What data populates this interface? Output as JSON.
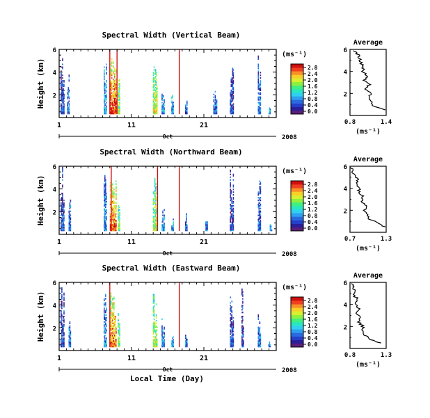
{
  "x_axis": {
    "tick_labels": [
      "1",
      "11",
      "21"
    ],
    "month_label": "Oct",
    "year_label": "2008",
    "title": "Local Time (Day)"
  },
  "y_label": "Height (km)",
  "y_tick_labels": [
    "6",
    "4",
    "2"
  ],
  "colorbar": {
    "unit_label": "(ms⁻¹)",
    "colors": [
      "#5a1e78",
      "#2a1e9a",
      "#2440c8",
      "#2a6ae0",
      "#2ea0f0",
      "#30d0f0",
      "#28e8c0",
      "#40f080",
      "#90f040",
      "#d8f030",
      "#f8d028",
      "#f89028",
      "#f04020",
      "#d01010"
    ]
  },
  "panels": [
    {
      "title": "Spectral Width (Vertical Beam)",
      "colorbar_ticks": [
        "2.8",
        "2.4",
        "2.0",
        "1.6",
        "1.2",
        "0.8",
        "0.4",
        "0.0"
      ],
      "average_title": "Average",
      "average_ticks": [
        "0.8",
        "1.4"
      ],
      "average_xlabel": "(ms⁻¹)",
      "average_y_ticks": [
        "6",
        "4",
        "2"
      ]
    },
    {
      "title": "Spectral Width (Northward Beam)",
      "colorbar_ticks": [
        "2.8",
        "2.4",
        "2.0",
        "1.6",
        "1.2",
        "0.8",
        "0.4",
        "0.0"
      ],
      "average_title": "Average",
      "average_ticks": [
        "0.7",
        "1.3"
      ],
      "average_xlabel": "(ms⁻¹)",
      "average_y_ticks": [
        "6",
        "4",
        "2"
      ]
    },
    {
      "title": "Spectral Width (Eastward Beam)",
      "colorbar_ticks": [
        "2.8",
        "2.4",
        "2.0",
        "1.6",
        "1.2",
        "0.8",
        "0.4",
        "0.0"
      ],
      "average_title": "Average",
      "average_ticks": [
        "0.8",
        "1.3"
      ],
      "average_xlabel": "(ms⁻¹)",
      "average_y_ticks": [
        "6",
        "4",
        "2"
      ]
    }
  ],
  "chart_data": [
    {
      "type": "heatmap",
      "title": "Spectral Width (Vertical Beam)",
      "xlabel": "",
      "ylabel": "Height (km)",
      "xlim": [
        1,
        31
      ],
      "ylim": [
        0,
        6
      ],
      "colorbar_range": [
        0.0,
        2.8
      ],
      "colorbar_label": "(ms⁻¹)",
      "events": [
        {
          "day": 1.4,
          "width": 0.5,
          "top": 5.9,
          "v": 0.2
        },
        {
          "day": 2.2,
          "width": 0.3,
          "top": 4.2,
          "v": 0.3
        },
        {
          "day": 7.3,
          "width": 0.4,
          "top": 5.5,
          "v": 0.5
        },
        {
          "day": 8.4,
          "width": 0.9,
          "top": 5.9,
          "v": 1.4
        },
        {
          "day": 9.2,
          "width": 0.3,
          "top": 3.5,
          "v": 0.9
        },
        {
          "day": 14.2,
          "width": 0.6,
          "top": 5.0,
          "v": 1.0
        },
        {
          "day": 15.3,
          "width": 0.4,
          "top": 3.5,
          "v": 0.4
        },
        {
          "day": 16.6,
          "width": 0.3,
          "top": 2.5,
          "v": 0.4
        },
        {
          "day": 18.5,
          "width": 0.3,
          "top": 1.6,
          "v": 0.3
        },
        {
          "day": 22.5,
          "width": 0.5,
          "top": 2.8,
          "v": 0.3
        },
        {
          "day": 24.8,
          "width": 0.5,
          "top": 5.9,
          "v": 0.2
        },
        {
          "day": 28.6,
          "width": 0.4,
          "top": 5.9,
          "v": 0.3
        },
        {
          "day": 30.0,
          "width": 0.3,
          "top": 1.0,
          "v": 0.4
        }
      ],
      "red_lines": [
        8.0,
        9.0,
        17.6
      ],
      "average_profile": {
        "xlim": [
          0.8,
          1.4
        ],
        "height": [
          0.5,
          0.8,
          1.2,
          1.6,
          2.0,
          2.4,
          2.8,
          3.2,
          3.6,
          4.0,
          4.4,
          4.8,
          5.2,
          5.6,
          5.9
        ],
        "value": [
          1.38,
          1.2,
          1.15,
          1.1,
          1.14,
          1.06,
          1.12,
          1.04,
          1.09,
          1.0,
          1.03,
          0.98,
          0.96,
          0.92,
          0.86
        ]
      }
    },
    {
      "type": "heatmap",
      "title": "Spectral Width (Northward Beam)",
      "xlabel": "",
      "ylabel": "Height (km)",
      "xlim": [
        1,
        31
      ],
      "ylim": [
        0,
        6
      ],
      "colorbar_range": [
        0.0,
        2.8
      ],
      "colorbar_label": "(ms⁻¹)",
      "events": [
        {
          "day": 1.4,
          "width": 0.5,
          "top": 5.9,
          "v": 0.2
        },
        {
          "day": 2.4,
          "width": 0.3,
          "top": 3.5,
          "v": 0.3
        },
        {
          "day": 7.3,
          "width": 0.4,
          "top": 5.9,
          "v": 0.4
        },
        {
          "day": 8.4,
          "width": 0.9,
          "top": 5.9,
          "v": 1.3
        },
        {
          "day": 9.2,
          "width": 0.3,
          "top": 3.5,
          "v": 0.8
        },
        {
          "day": 14.2,
          "width": 0.6,
          "top": 5.5,
          "v": 0.9
        },
        {
          "day": 15.3,
          "width": 0.4,
          "top": 3.2,
          "v": 0.4
        },
        {
          "day": 16.6,
          "width": 0.3,
          "top": 1.8,
          "v": 0.4
        },
        {
          "day": 18.5,
          "width": 0.3,
          "top": 2.0,
          "v": 0.3
        },
        {
          "day": 21.3,
          "width": 0.3,
          "top": 1.2,
          "v": 0.3
        },
        {
          "day": 24.8,
          "width": 0.5,
          "top": 5.9,
          "v": 0.2
        },
        {
          "day": 28.6,
          "width": 0.4,
          "top": 5.5,
          "v": 0.3
        },
        {
          "day": 30.2,
          "width": 0.3,
          "top": 1.0,
          "v": 0.4
        }
      ],
      "red_lines": [
        8.2,
        14.6,
        17.6
      ],
      "average_profile": {
        "xlim": [
          0.7,
          1.3
        ],
        "height": [
          0.5,
          0.8,
          1.2,
          1.6,
          2.0,
          2.4,
          2.8,
          3.2,
          3.6,
          4.0,
          4.4,
          4.8,
          5.2,
          5.6,
          5.9
        ],
        "value": [
          1.28,
          1.18,
          1.02,
          0.98,
          0.94,
          0.97,
          0.9,
          0.92,
          0.84,
          0.86,
          0.8,
          0.82,
          0.77,
          0.74,
          0.71
        ]
      }
    },
    {
      "type": "heatmap",
      "title": "Spectral Width (Eastward Beam)",
      "xlabel": "Local Time (Day)",
      "ylabel": "Height (km)",
      "xlim": [
        1,
        31
      ],
      "ylim": [
        0,
        6
      ],
      "colorbar_range": [
        0.0,
        2.8
      ],
      "colorbar_label": "(ms⁻¹)",
      "events": [
        {
          "day": 1.4,
          "width": 0.5,
          "top": 5.9,
          "v": 0.2
        },
        {
          "day": 2.4,
          "width": 0.3,
          "top": 3.0,
          "v": 0.3
        },
        {
          "day": 7.3,
          "width": 0.4,
          "top": 5.0,
          "v": 0.4
        },
        {
          "day": 8.4,
          "width": 0.9,
          "top": 5.9,
          "v": 1.3
        },
        {
          "day": 9.2,
          "width": 0.3,
          "top": 3.2,
          "v": 0.8
        },
        {
          "day": 14.2,
          "width": 0.6,
          "top": 5.5,
          "v": 0.9
        },
        {
          "day": 15.3,
          "width": 0.4,
          "top": 3.0,
          "v": 0.4
        },
        {
          "day": 16.6,
          "width": 0.3,
          "top": 1.8,
          "v": 0.4
        },
        {
          "day": 18.5,
          "width": 0.3,
          "top": 1.5,
          "v": 0.3
        },
        {
          "day": 24.8,
          "width": 0.5,
          "top": 5.9,
          "v": 0.2
        },
        {
          "day": 26.3,
          "width": 0.3,
          "top": 5.5,
          "v": 0.2
        },
        {
          "day": 28.6,
          "width": 0.4,
          "top": 4.0,
          "v": 0.3
        },
        {
          "day": 30.0,
          "width": 0.3,
          "top": 1.0,
          "v": 0.4
        }
      ],
      "red_lines": [
        8.0,
        17.6
      ],
      "average_profile": {
        "xlim": [
          0.8,
          1.3
        ],
        "height": [
          0.5,
          0.8,
          1.2,
          1.6,
          2.0,
          2.4,
          2.8,
          3.2,
          3.6,
          4.0,
          4.4,
          4.8,
          5.2,
          5.6,
          5.9
        ],
        "value": [
          1.22,
          1.1,
          1.0,
          0.96,
          0.98,
          0.92,
          0.95,
          0.9,
          0.93,
          0.88,
          0.91,
          0.86,
          0.88,
          0.84,
          0.82
        ]
      }
    }
  ]
}
